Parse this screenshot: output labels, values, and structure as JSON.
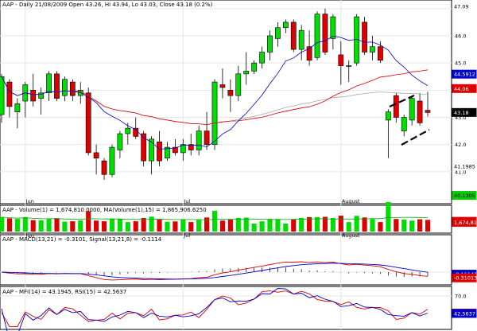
{
  "header": {
    "main": "AAP - Daily 21/08/2009 Open 43.26, Hi 43.94, Lo 43.03, Close 43.18 (0.2%)",
    "volume": "AAP - Volume(1) = 1,674,810.0000, MA(Volume(1),15) = 1,865,906.6250",
    "macd": "AAP - MACD(13,21) = -0.3101, Signal(13,21,8) = -0.1114",
    "osc": "AAP - MFI(14) = 43.1945, RSI(15) = 42.5637"
  },
  "colors": {
    "up": "#00dd00",
    "down": "#dd0000",
    "sma_short": "#0000cc",
    "sma_long": "#dd0000",
    "sma_longest": "#aaaaaa",
    "volume_ma": "#00aa00",
    "macd": "#dd0000",
    "signal": "#0000cc",
    "mfi": "#dd0000",
    "rsi": "#0000cc"
  },
  "chart_data": {
    "type": "candlestick",
    "price_axis": {
      "ticks": [
        "47.0",
        "46.0",
        "45.0",
        "44.0",
        "43.0",
        "42.0",
        "41.0"
      ],
      "markers": [
        {
          "label": "47.09",
          "value": 47.09,
          "style": "white"
        },
        {
          "label": "44.5912",
          "value": 44.59,
          "style": "blue"
        },
        {
          "label": "44.06",
          "value": 44.06,
          "style": "red"
        },
        {
          "label": "43.18",
          "value": 43.18,
          "style": "black"
        },
        {
          "label": "41.1985",
          "value": 41.2,
          "style": "white"
        },
        {
          "label": "40.1305",
          "value": 40.13,
          "style": "green"
        }
      ],
      "ylim": [
        40.0,
        47.2
      ]
    },
    "x_labels": [
      {
        "label": "Jun",
        "index": 3
      },
      {
        "label": "Jul",
        "index": 23
      },
      {
        "label": "August",
        "index": 43
      }
    ],
    "candles": [
      {
        "o": 43.1,
        "h": 44.6,
        "l": 42.8,
        "c": 44.5
      },
      {
        "o": 44.3,
        "h": 44.4,
        "l": 43.0,
        "c": 43.4
      },
      {
        "o": 43.2,
        "h": 43.7,
        "l": 42.6,
        "c": 43.5
      },
      {
        "o": 43.6,
        "h": 44.3,
        "l": 43.0,
        "c": 44.2
      },
      {
        "o": 44.0,
        "h": 44.6,
        "l": 43.4,
        "c": 43.6
      },
      {
        "o": 43.7,
        "h": 44.1,
        "l": 43.1,
        "c": 43.9
      },
      {
        "o": 43.9,
        "h": 44.7,
        "l": 43.6,
        "c": 44.6
      },
      {
        "o": 44.6,
        "h": 44.7,
        "l": 43.6,
        "c": 43.7
      },
      {
        "o": 43.8,
        "h": 44.5,
        "l": 43.6,
        "c": 44.4
      },
      {
        "o": 44.3,
        "h": 44.4,
        "l": 43.6,
        "c": 43.8
      },
      {
        "o": 43.8,
        "h": 44.3,
        "l": 43.5,
        "c": 44.0
      },
      {
        "o": 43.9,
        "h": 44.1,
        "l": 41.6,
        "c": 41.7
      },
      {
        "o": 41.7,
        "h": 42.0,
        "l": 40.9,
        "c": 41.5
      },
      {
        "o": 41.4,
        "h": 41.5,
        "l": 40.7,
        "c": 40.9
      },
      {
        "o": 40.9,
        "h": 42.0,
        "l": 40.8,
        "c": 41.9
      },
      {
        "o": 41.8,
        "h": 42.5,
        "l": 41.5,
        "c": 42.4
      },
      {
        "o": 42.4,
        "h": 42.8,
        "l": 42.0,
        "c": 42.6
      },
      {
        "o": 42.6,
        "h": 43.0,
        "l": 42.2,
        "c": 42.3
      },
      {
        "o": 42.4,
        "h": 42.5,
        "l": 41.2,
        "c": 41.4
      },
      {
        "o": 41.4,
        "h": 42.3,
        "l": 40.9,
        "c": 42.2
      },
      {
        "o": 42.1,
        "h": 42.5,
        "l": 41.2,
        "c": 41.4
      },
      {
        "o": 41.5,
        "h": 42.1,
        "l": 41.4,
        "c": 41.9
      },
      {
        "o": 41.9,
        "h": 42.2,
        "l": 41.6,
        "c": 41.7
      },
      {
        "o": 41.7,
        "h": 42.2,
        "l": 41.4,
        "c": 42.0
      },
      {
        "o": 42.0,
        "h": 42.4,
        "l": 41.6,
        "c": 41.8
      },
      {
        "o": 41.8,
        "h": 42.7,
        "l": 41.6,
        "c": 42.5
      },
      {
        "o": 42.5,
        "h": 43.2,
        "l": 41.8,
        "c": 42.0
      },
      {
        "o": 42.0,
        "h": 44.4,
        "l": 41.8,
        "c": 44.3
      },
      {
        "o": 44.2,
        "h": 44.8,
        "l": 43.7,
        "c": 44.1
      },
      {
        "o": 44.0,
        "h": 44.4,
        "l": 43.2,
        "c": 43.8
      },
      {
        "o": 43.8,
        "h": 44.9,
        "l": 43.6,
        "c": 44.6
      },
      {
        "o": 44.6,
        "h": 45.4,
        "l": 44.2,
        "c": 44.7
      },
      {
        "o": 44.7,
        "h": 45.1,
        "l": 44.6,
        "c": 45.0
      },
      {
        "o": 45.0,
        "h": 45.6,
        "l": 44.8,
        "c": 45.4
      },
      {
        "o": 45.4,
        "h": 46.2,
        "l": 45.1,
        "c": 46.0
      },
      {
        "o": 45.9,
        "h": 46.5,
        "l": 45.6,
        "c": 46.3
      },
      {
        "o": 46.3,
        "h": 46.6,
        "l": 46.1,
        "c": 46.5
      },
      {
        "o": 46.5,
        "h": 46.6,
        "l": 45.4,
        "c": 45.5
      },
      {
        "o": 45.5,
        "h": 46.4,
        "l": 45.1,
        "c": 46.2
      },
      {
        "o": 45.6,
        "h": 46.2,
        "l": 44.9,
        "c": 45.1
      },
      {
        "o": 45.2,
        "h": 46.9,
        "l": 45.1,
        "c": 46.8
      },
      {
        "o": 46.8,
        "h": 47.0,
        "l": 45.3,
        "c": 45.4
      },
      {
        "o": 45.9,
        "h": 46.8,
        "l": 45.5,
        "c": 46.7
      },
      {
        "o": 45.3,
        "h": 45.8,
        "l": 44.2,
        "c": 44.9
      },
      {
        "o": 44.9,
        "h": 45.1,
        "l": 44.3,
        "c": 44.9
      },
      {
        "o": 45.0,
        "h": 46.8,
        "l": 44.9,
        "c": 46.7
      },
      {
        "o": 46.5,
        "h": 46.7,
        "l": 45.3,
        "c": 45.4
      },
      {
        "o": 45.4,
        "h": 46.0,
        "l": 45.1,
        "c": 45.6
      },
      {
        "o": 45.6,
        "h": 45.8,
        "l": 45.0,
        "c": 45.1
      },
      {
        "o": 42.9,
        "h": 43.3,
        "l": 41.5,
        "c": 43.2
      },
      {
        "o": 43.8,
        "h": 43.9,
        "l": 42.8,
        "c": 43.0
      },
      {
        "o": 42.5,
        "h": 43.1,
        "l": 42.3,
        "c": 43.0
      },
      {
        "o": 42.9,
        "h": 43.8,
        "l": 42.7,
        "c": 43.7
      },
      {
        "o": 43.6,
        "h": 43.9,
        "l": 42.7,
        "c": 42.8
      },
      {
        "o": 43.26,
        "h": 43.94,
        "l": 43.03,
        "c": 43.18
      }
    ],
    "volume_axis": {
      "markers": [
        {
          "label": "1,865,906",
          "value": 1.866,
          "style": "red"
        },
        {
          "label": "1,674,810",
          "value": 1.675,
          "style": "red"
        }
      ],
      "ylim": [
        0,
        4.2
      ]
    },
    "macd_axis": {
      "markers": [
        {
          "label": "-0.111419",
          "value": -0.111,
          "style": "blue"
        },
        {
          "label": "-0.310131",
          "value": -0.31,
          "style": "red"
        }
      ],
      "ylim": [
        -0.6,
        1.8
      ]
    },
    "osc_axis": {
      "ticks": [
        "70.0"
      ],
      "markers": [
        {
          "label": "43.1945",
          "value": 43.19,
          "style": "red"
        },
        {
          "label": "42.5637",
          "value": 42.56,
          "style": "blue"
        }
      ],
      "ylim": [
        20,
        80
      ]
    }
  }
}
